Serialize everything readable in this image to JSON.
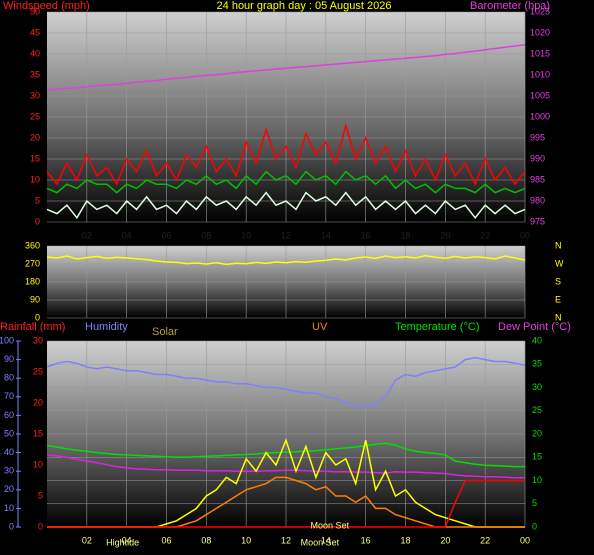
{
  "chart_data": [
    {
      "type": "line",
      "title": "24 hour graph day : 05 August 2026",
      "y_label": "Windspeed (mph)",
      "y2_label": "Barometer (hpa)",
      "x": [
        0,
        0.5,
        1,
        1.5,
        2,
        2.5,
        3,
        3.5,
        4,
        4.5,
        5,
        5.5,
        6,
        6.5,
        7,
        7.5,
        8,
        8.5,
        9,
        9.5,
        10,
        10.5,
        11,
        11.5,
        12,
        12.5,
        13,
        13.5,
        14,
        14.5,
        15,
        15.5,
        16,
        16.5,
        17,
        17.5,
        18,
        18.5,
        19,
        19.5,
        20,
        20.5,
        21,
        21.5,
        22,
        22.5,
        23,
        23.5,
        24
      ],
      "xlim": [
        0,
        24
      ],
      "xticks": [
        {
          "value": 2,
          "label": "02"
        },
        {
          "value": 4,
          "label": "04"
        },
        {
          "value": 6,
          "label": "06"
        },
        {
          "value": 8,
          "label": "08"
        },
        10,
        12,
        14,
        16,
        18,
        20,
        22,
        {
          "value": 24,
          "label": "00"
        }
      ],
      "ylim": [
        0,
        50
      ],
      "yticks": [
        0,
        5,
        10,
        15,
        20,
        25,
        30,
        35,
        40,
        45,
        50
      ],
      "y2lim": [
        975,
        1025
      ],
      "y2ticks": [
        975,
        980,
        985,
        990,
        995,
        1000,
        1005,
        1010,
        1015,
        1020,
        1025
      ],
      "grid": true,
      "series": [
        {
          "color": "#e040e0",
          "axis": "y2",
          "values": [
            1006.4,
            1006.6,
            1006.8,
            1007.0,
            1007.2,
            1007.4,
            1007.6,
            1007.8,
            1008.0,
            1008.3,
            1008.5,
            1008.7,
            1009.0,
            1009.2,
            1009.4,
            1009.7,
            1009.9,
            1010.1,
            1010.3,
            1010.6,
            1010.8,
            1011.0,
            1011.2,
            1011.4,
            1011.6,
            1011.8,
            1012.0,
            1012.2,
            1012.4,
            1012.6,
            1012.8,
            1013.0,
            1013.2,
            1013.4,
            1013.6,
            1013.8,
            1014.0,
            1014.2,
            1014.4,
            1014.6,
            1014.9,
            1015.1,
            1015.4,
            1015.7,
            1016.0,
            1016.3,
            1016.6,
            1016.9,
            1017.2
          ]
        },
        {
          "color": "#ff0000",
          "axis": "y",
          "values": [
            12,
            9,
            14,
            10,
            16,
            11,
            13,
            9,
            15,
            12,
            17,
            11,
            14,
            10,
            16,
            13,
            18,
            12,
            15,
            11,
            19,
            14,
            22,
            15,
            18,
            13,
            21,
            16,
            19,
            14,
            23,
            15,
            20,
            14,
            18,
            12,
            17,
            11,
            15,
            10,
            16,
            11,
            14,
            9,
            15,
            10,
            13,
            9,
            12
          ]
        },
        {
          "color": "#00c000",
          "axis": "y",
          "values": [
            8,
            7,
            9,
            8,
            10,
            9,
            9,
            7,
            9,
            8,
            10,
            9,
            9,
            8,
            10,
            9,
            11,
            9,
            10,
            8,
            11,
            9,
            12,
            10,
            11,
            9,
            12,
            10,
            11,
            9,
            12,
            10,
            11,
            9,
            11,
            8,
            10,
            8,
            9,
            7,
            9,
            8,
            8,
            7,
            9,
            7,
            8,
            7,
            8
          ]
        },
        {
          "color": "#e0ffe0",
          "axis": "y",
          "values": [
            3,
            2,
            4,
            1,
            5,
            3,
            4,
            2,
            5,
            3,
            6,
            3,
            4,
            2,
            5,
            3,
            6,
            4,
            5,
            3,
            6,
            4,
            7,
            4,
            5,
            3,
            7,
            5,
            6,
            4,
            7,
            4,
            6,
            3,
            5,
            3,
            5,
            2,
            4,
            2,
            5,
            3,
            4,
            1,
            4,
            2,
            4,
            2,
            3
          ]
        }
      ]
    },
    {
      "type": "line",
      "x": [
        0,
        0.5,
        1,
        1.5,
        2,
        2.5,
        3,
        3.5,
        4,
        4.5,
        5,
        5.5,
        6,
        6.5,
        7,
        7.5,
        8,
        8.5,
        9,
        9.5,
        10,
        10.5,
        11,
        11.5,
        12,
        12.5,
        13,
        13.5,
        14,
        14.5,
        15,
        15.5,
        16,
        16.5,
        17,
        17.5,
        18,
        18.5,
        19,
        19.5,
        20,
        20.5,
        21,
        21.5,
        22,
        22.5,
        23,
        23.5,
        24
      ],
      "xlim": [
        0,
        24
      ],
      "ylim": [
        0,
        360
      ],
      "yticks": [
        0,
        90,
        180,
        270,
        360
      ],
      "grid": true,
      "compass": [
        "N",
        "W",
        "S",
        "E",
        "N"
      ],
      "series": [
        {
          "color": "#ffff00",
          "axis": "y",
          "values": [
            305,
            300,
            310,
            295,
            302,
            308,
            298,
            304,
            300,
            296,
            292,
            285,
            280,
            278,
            272,
            275,
            270,
            276,
            268,
            274,
            271,
            278,
            273,
            280,
            276,
            282,
            279,
            285,
            288,
            295,
            290,
            300,
            305,
            298,
            310,
            302,
            306,
            300,
            312,
            304,
            298,
            308,
            300,
            306,
            302,
            296,
            310,
            300,
            290
          ]
        }
      ]
    },
    {
      "type": "line",
      "x": [
        0,
        0.5,
        1,
        1.5,
        2,
        2.5,
        3,
        3.5,
        4,
        4.5,
        5,
        5.5,
        6,
        6.5,
        7,
        7.5,
        8,
        8.5,
        9,
        9.5,
        10,
        10.5,
        11,
        11.5,
        12,
        12.5,
        13,
        13.5,
        14,
        14.5,
        15,
        15.5,
        16,
        16.5,
        17,
        17.5,
        18,
        18.5,
        19,
        19.5,
        20,
        20.5,
        21,
        21.5,
        22,
        22.5,
        23,
        23.5,
        24
      ],
      "xlim": [
        0,
        24
      ],
      "xticks": [
        {
          "value": 2,
          "label": "02"
        },
        {
          "value": 4,
          "label": "04"
        },
        {
          "value": 6,
          "label": "06"
        },
        {
          "value": 8,
          "label": "08"
        },
        10,
        12,
        14,
        16,
        18,
        20,
        22,
        {
          "value": 24,
          "label": "00"
        }
      ],
      "ylim": [
        0,
        100
      ],
      "yticks": [
        0,
        10,
        20,
        30,
        40,
        50,
        60,
        70,
        80,
        90,
        100
      ],
      "y2lim": [
        0,
        40
      ],
      "y2ticks": [
        0,
        5,
        10,
        15,
        20,
        25,
        30,
        35,
        40
      ],
      "y3lim": [
        0,
        30
      ],
      "y3ticks": [
        0,
        5,
        10,
        15,
        20,
        25,
        30
      ],
      "grid": true,
      "grid_axis": "y2",
      "series": [
        {
          "name": "Humidity",
          "color": "#8080ff",
          "axis": "y",
          "values": [
            86,
            88,
            89,
            88,
            86,
            85,
            86,
            85,
            84,
            84,
            83,
            82,
            82,
            81,
            80,
            80,
            79,
            78,
            78,
            77,
            77,
            76,
            75,
            75,
            74,
            73,
            72,
            72,
            70,
            69,
            67,
            65,
            65,
            66,
            70,
            79,
            82,
            81,
            83,
            84,
            85,
            86,
            90,
            91,
            90,
            89,
            89,
            88,
            87
          ]
        },
        {
          "name": "Temperature (°C)",
          "color": "#00e000",
          "axis": "y2",
          "values": [
            17.5,
            17.2,
            16.8,
            16.5,
            16.3,
            16.0,
            15.8,
            15.6,
            15.5,
            15.4,
            15.3,
            15.2,
            15.1,
            15.0,
            15.0,
            15.1,
            15.2,
            15.3,
            15.4,
            15.5,
            15.6,
            15.7,
            15.9,
            16.0,
            16.1,
            16.2,
            16.3,
            16.4,
            16.6,
            16.8,
            17.0,
            17.2,
            17.5,
            17.8,
            18.0,
            17.6,
            16.8,
            16.3,
            16.0,
            15.8,
            15.5,
            14.2,
            13.8,
            13.5,
            13.3,
            13.2,
            13.1,
            13.0,
            13.0
          ]
        },
        {
          "name": "Dew Point (°C)",
          "color": "#e020e0",
          "axis": "y2",
          "values": [
            15.5,
            15.3,
            15.0,
            14.6,
            14.2,
            13.8,
            13.4,
            13.0,
            12.7,
            12.5,
            12.4,
            12.3,
            12.3,
            12.2,
            12.2,
            12.2,
            12.1,
            12.1,
            12.1,
            12.0,
            12.0,
            12.0,
            12.1,
            12.1,
            12.2,
            12.2,
            12.1,
            12.0,
            12.0,
            11.9,
            11.9,
            11.8,
            11.8,
            11.7,
            11.6,
            11.9,
            11.8,
            11.8,
            11.7,
            11.6,
            11.5,
            11.2,
            11.0,
            10.9,
            10.8,
            10.8,
            10.7,
            10.6,
            10.6
          ]
        },
        {
          "name": "Solar",
          "color": "#ffff00",
          "axis": "y3",
          "values": [
            0,
            0,
            0,
            0,
            0,
            0,
            0,
            0,
            0,
            0,
            0,
            0,
            0.5,
            1,
            2,
            3,
            5,
            6,
            8,
            7,
            11,
            9,
            12,
            10,
            14,
            9,
            13,
            8,
            12,
            10,
            11,
            7,
            14,
            6,
            9,
            5,
            6,
            4,
            3,
            2,
            1.5,
            1,
            0.5,
            0,
            0,
            0,
            0,
            0,
            0
          ]
        },
        {
          "name": "UV",
          "color": "#ff8000",
          "axis": "y3",
          "values": [
            0,
            0,
            0,
            0,
            0,
            0,
            0,
            0,
            0,
            0,
            0,
            0,
            0,
            0,
            0.5,
            1,
            2,
            3,
            4,
            5,
            6,
            6.5,
            7,
            8,
            8,
            7.5,
            7,
            6,
            6.5,
            5,
            5,
            4,
            5,
            3,
            3,
            2,
            1.5,
            1,
            0.5,
            0,
            0,
            0,
            0,
            0,
            0,
            0,
            0,
            0,
            0
          ]
        },
        {
          "name": "Rainfall (mm)",
          "color": "#ff0000",
          "axis": "y3",
          "values": [
            0,
            0,
            0,
            0,
            0,
            0,
            0,
            0,
            0,
            0,
            0,
            0,
            0,
            0,
            0,
            0,
            0,
            0,
            0,
            0,
            0,
            0,
            0,
            0,
            0,
            0,
            0,
            0,
            0,
            0,
            0,
            0,
            0,
            0,
            0,
            0,
            0,
            0,
            0,
            0,
            0,
            4,
            7.5,
            7.5,
            7.5,
            7.5,
            7.5,
            7.5,
            7.5
          ]
        }
      ],
      "annotations": [
        {
          "text": "Hightide",
          "x": 3.8
        },
        {
          "text": "Moon Set",
          "x": 13.7
        },
        {
          "text": "Moon Set",
          "x": 14.2,
          "inside": true
        }
      ]
    }
  ]
}
